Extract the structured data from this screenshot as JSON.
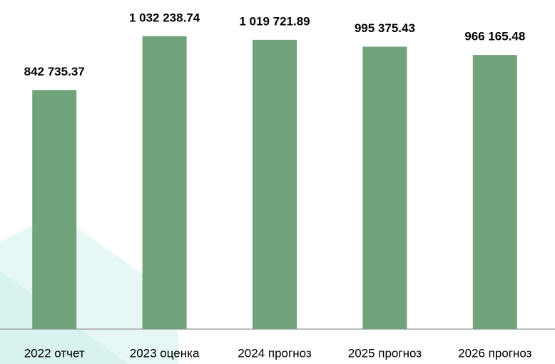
{
  "chart_data": {
    "type": "bar",
    "categories": [
      "2022 отчет",
      "2023 оценка",
      "2024 прогноз",
      "2025 прогноз",
      "2026 прогноз"
    ],
    "values": [
      842735.37,
      1032238.74,
      1019721.89,
      995375.43,
      966165.48
    ],
    "value_labels": [
      "842 735.37",
      "1 032 238.74",
      "1 019 721.89",
      "995 375.43",
      "966 165.48"
    ],
    "color": "#70a37a",
    "ylim": [
      0,
      1160000
    ]
  }
}
